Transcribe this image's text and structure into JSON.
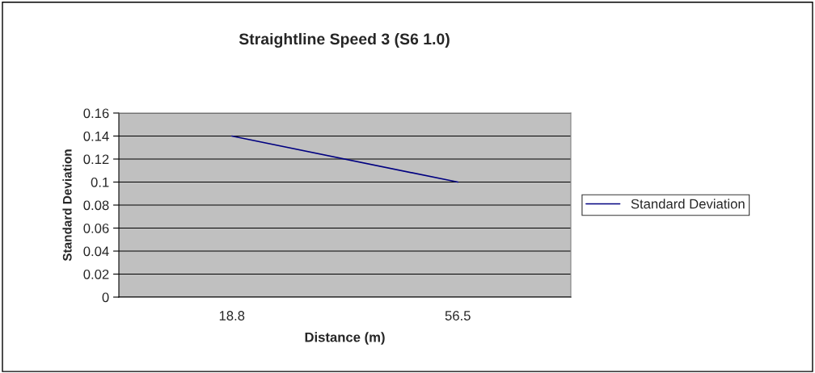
{
  "chart_data": {
    "type": "line",
    "title": "Straightline Speed 3 (S6 1.0)",
    "xlabel": "Distance (m)",
    "ylabel": "Standard Deviation",
    "categories": [
      "18.8",
      "56.5"
    ],
    "series": [
      {
        "name": "Standard Deviation",
        "color": "#000080",
        "values": [
          0.14,
          0.1
        ]
      }
    ],
    "ylim": [
      0,
      0.16
    ],
    "yticks": [
      0,
      0.02,
      0.04,
      0.06,
      0.08,
      0.1,
      0.12,
      0.14,
      0.16
    ],
    "grid": "y",
    "legend": "right",
    "marker": "none"
  }
}
